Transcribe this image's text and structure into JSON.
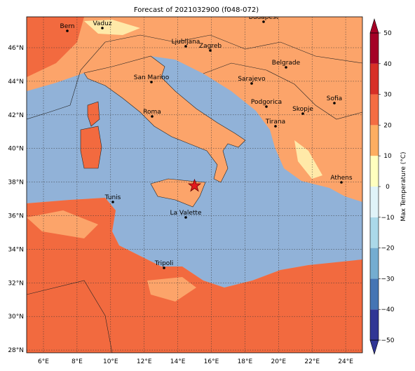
{
  "title": "Forecast of 2021032900 (f048-072)",
  "map": {
    "lon_ticks": [
      "6°E",
      "8°E",
      "10°E",
      "12°E",
      "14°E",
      "16°E",
      "18°E",
      "20°E",
      "22°E",
      "24°E"
    ],
    "lat_ticks": [
      "46°N",
      "44°N",
      "42°N",
      "40°N",
      "38°N",
      "36°N",
      "34°N",
      "32°N",
      "30°N",
      "28°N"
    ],
    "cities": [
      "Bern",
      "Vaduz",
      "Budapest",
      "Ljubljana",
      "Zagreb",
      "Belgrade",
      "San Marino",
      "Sarajevo",
      "Sofia",
      "Podgorica",
      "Skopje",
      "Roma",
      "Tirana",
      "Athens",
      "Tunis",
      "La Valette",
      "Tripoli"
    ]
  },
  "colorbar": {
    "label": "Max Temperature (°C)",
    "ticks": [
      {
        "value": -50,
        "label": "−50"
      },
      {
        "value": -40,
        "label": "−40"
      },
      {
        "value": -30,
        "label": "−30"
      },
      {
        "value": -20,
        "label": "−20"
      },
      {
        "value": -10,
        "label": "−10"
      },
      0,
      10,
      20,
      30,
      40,
      50
    ],
    "colors": [
      "#313695",
      "#4575b4",
      "#74add1",
      "#abd9e9",
      "#e0f3f8",
      "#ffffbf",
      "#fdae61",
      "#f46d43",
      "#d73027",
      "#a50026"
    ]
  }
}
